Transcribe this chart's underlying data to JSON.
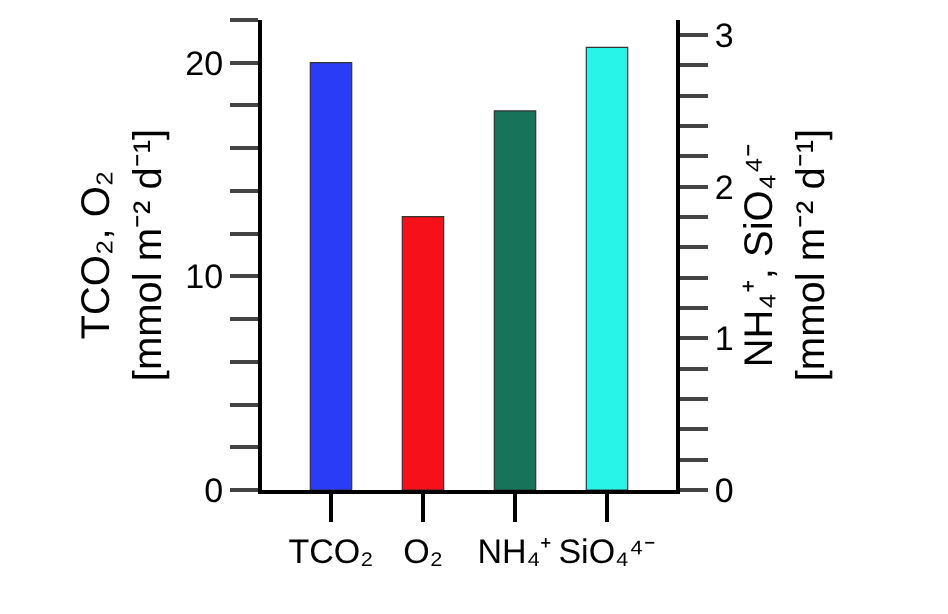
{
  "chart_data": {
    "type": "bar",
    "ylabel": "TCO₂, O₂\n[mmol m⁻² d⁻¹]",
    "y2label": "NH₄⁺, SiO₄⁴⁻\n[mmol m⁻² d⁻¹]",
    "categories": [
      "TCO₂",
      "O₂",
      "NH₄⁺",
      "SiO₄⁴⁻"
    ],
    "series": [
      {
        "values": [
          20,
          12.8,
          null,
          null
        ],
        "colors": [
          "#2a3cf5",
          "#f5101a",
          null,
          null
        ]
      },
      {
        "axis": "y2",
        "values": [
          null,
          null,
          2.5,
          2.92
        ],
        "colors": [
          null,
          null,
          "#17735a",
          "#28f5e8"
        ]
      }
    ],
    "ylim": [
      0,
      22
    ],
    "yticks": [
      0,
      {
        "value": 2,
        "label": null
      },
      {
        "value": 4,
        "label": null
      },
      {
        "value": 6,
        "label": null
      },
      {
        "value": 8,
        "label": null
      },
      10,
      {
        "value": 12,
        "label": null
      },
      {
        "value": 14,
        "label": null
      },
      {
        "value": 16,
        "label": null
      },
      {
        "value": 18,
        "label": null
      },
      20,
      {
        "value": 22,
        "label": null
      }
    ],
    "y2lim": [
      0,
      3.1
    ],
    "y2ticks": [
      0,
      {
        "value": 0.2,
        "label": null
      },
      {
        "value": 0.4,
        "label": null
      },
      {
        "value": 0.6,
        "label": null
      },
      {
        "value": 0.8,
        "label": null
      },
      1,
      {
        "value": 1.2,
        "label": null
      },
      {
        "value": 1.4,
        "label": null
      },
      {
        "value": 1.6,
        "label": null
      },
      {
        "value": 1.8,
        "label": null
      },
      2,
      {
        "value": 2.2,
        "label": null
      },
      {
        "value": 2.4,
        "label": null
      },
      {
        "value": 2.6,
        "label": null
      },
      {
        "value": 2.8,
        "label": null
      },
      3
    ],
    "grid": false
  }
}
